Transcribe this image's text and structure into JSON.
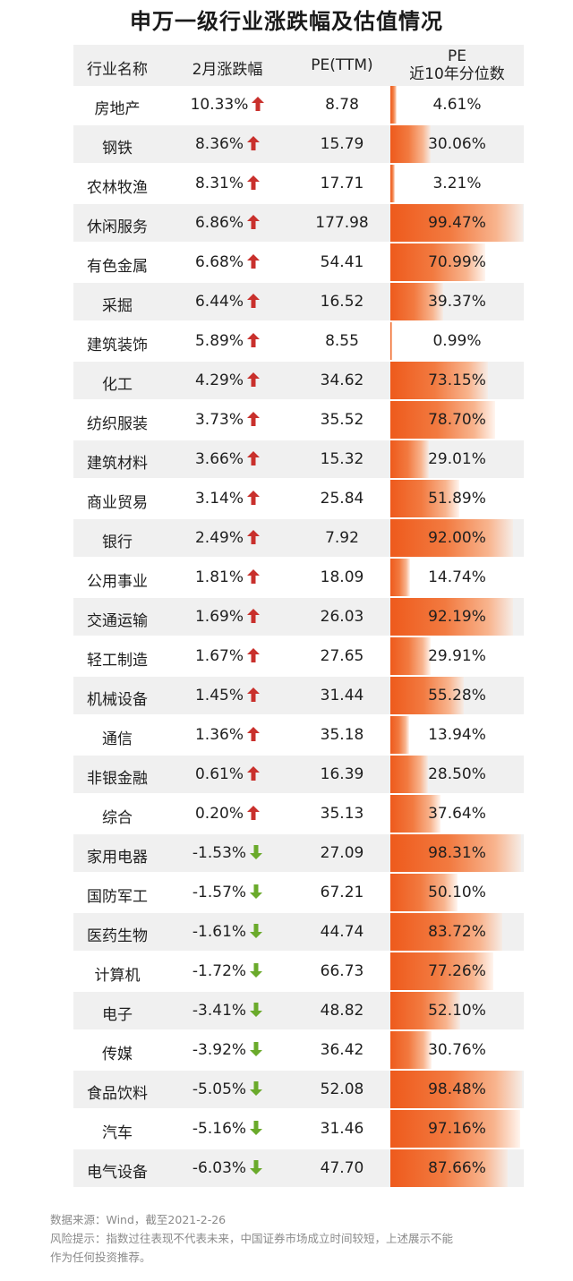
{
  "title": "申万一级行业涨跌幅及估值情况",
  "headers": {
    "name": "行业名称",
    "change": "2月涨跌幅",
    "pe": "PE(TTM)",
    "pct_line1": "PE",
    "pct_line2": "近10年分位数"
  },
  "colors": {
    "up": "#c9302c",
    "down": "#6aaa2b",
    "bar": "#ee5a1c",
    "row_shade": "#f0f0f0"
  },
  "chart_data": {
    "type": "table",
    "title": "申万一级行业涨跌幅及估值情况",
    "columns": [
      "行业名称",
      "2月涨跌幅",
      "PE(TTM)",
      "PE 近10年分位数"
    ],
    "rows": [
      {
        "name": "房地产",
        "change": "10.33%",
        "dir": "up",
        "pe": "8.78",
        "pct": "4.61%",
        "pct_value": 4.61
      },
      {
        "name": "钢铁",
        "change": "8.36%",
        "dir": "up",
        "pe": "15.79",
        "pct": "30.06%",
        "pct_value": 30.06
      },
      {
        "name": "农林牧渔",
        "change": "8.31%",
        "dir": "up",
        "pe": "17.71",
        "pct": "3.21%",
        "pct_value": 3.21
      },
      {
        "name": "休闲服务",
        "change": "6.86%",
        "dir": "up",
        "pe": "177.98",
        "pct": "99.47%",
        "pct_value": 99.47
      },
      {
        "name": "有色金属",
        "change": "6.68%",
        "dir": "up",
        "pe": "54.41",
        "pct": "70.99%",
        "pct_value": 70.99
      },
      {
        "name": "采掘",
        "change": "6.44%",
        "dir": "up",
        "pe": "16.52",
        "pct": "39.37%",
        "pct_value": 39.37
      },
      {
        "name": "建筑装饰",
        "change": "5.89%",
        "dir": "up",
        "pe": "8.55",
        "pct": "0.99%",
        "pct_value": 0.99
      },
      {
        "name": "化工",
        "change": "4.29%",
        "dir": "up",
        "pe": "34.62",
        "pct": "73.15%",
        "pct_value": 73.15
      },
      {
        "name": "纺织服装",
        "change": "3.73%",
        "dir": "up",
        "pe": "35.52",
        "pct": "78.70%",
        "pct_value": 78.7
      },
      {
        "name": "建筑材料",
        "change": "3.66%",
        "dir": "up",
        "pe": "15.32",
        "pct": "29.01%",
        "pct_value": 29.01
      },
      {
        "name": "商业贸易",
        "change": "3.14%",
        "dir": "up",
        "pe": "25.84",
        "pct": "51.89%",
        "pct_value": 51.89
      },
      {
        "name": "银行",
        "change": "2.49%",
        "dir": "up",
        "pe": "7.92",
        "pct": "92.00%",
        "pct_value": 92.0
      },
      {
        "name": "公用事业",
        "change": "1.81%",
        "dir": "up",
        "pe": "18.09",
        "pct": "14.74%",
        "pct_value": 14.74
      },
      {
        "name": "交通运输",
        "change": "1.69%",
        "dir": "up",
        "pe": "26.03",
        "pct": "92.19%",
        "pct_value": 92.19
      },
      {
        "name": "轻工制造",
        "change": "1.67%",
        "dir": "up",
        "pe": "27.65",
        "pct": "29.91%",
        "pct_value": 29.91
      },
      {
        "name": "机械设备",
        "change": "1.45%",
        "dir": "up",
        "pe": "31.44",
        "pct": "55.28%",
        "pct_value": 55.28
      },
      {
        "name": "通信",
        "change": "1.36%",
        "dir": "up",
        "pe": "35.18",
        "pct": "13.94%",
        "pct_value": 13.94
      },
      {
        "name": "非银金融",
        "change": "0.61%",
        "dir": "up",
        "pe": "16.39",
        "pct": "28.50%",
        "pct_value": 28.5
      },
      {
        "name": "综合",
        "change": "0.20%",
        "dir": "up",
        "pe": "35.13",
        "pct": "37.64%",
        "pct_value": 37.64
      },
      {
        "name": "家用电器",
        "change": "-1.53%",
        "dir": "down",
        "pe": "27.09",
        "pct": "98.31%",
        "pct_value": 98.31
      },
      {
        "name": "国防军工",
        "change": "-1.57%",
        "dir": "down",
        "pe": "67.21",
        "pct": "50.10%",
        "pct_value": 50.1
      },
      {
        "name": "医药生物",
        "change": "-1.61%",
        "dir": "down",
        "pe": "44.74",
        "pct": "83.72%",
        "pct_value": 83.72
      },
      {
        "name": "计算机",
        "change": "-1.72%",
        "dir": "down",
        "pe": "66.73",
        "pct": "77.26%",
        "pct_value": 77.26
      },
      {
        "name": "电子",
        "change": "-3.41%",
        "dir": "down",
        "pe": "48.82",
        "pct": "52.10%",
        "pct_value": 52.1
      },
      {
        "name": "传媒",
        "change": "-3.92%",
        "dir": "down",
        "pe": "36.42",
        "pct": "30.76%",
        "pct_value": 30.76
      },
      {
        "name": "食品饮料",
        "change": "-5.05%",
        "dir": "down",
        "pe": "52.08",
        "pct": "98.48%",
        "pct_value": 98.48
      },
      {
        "name": "汽车",
        "change": "-5.16%",
        "dir": "down",
        "pe": "31.46",
        "pct": "97.16%",
        "pct_value": 97.16
      },
      {
        "name": "电气设备",
        "change": "-6.03%",
        "dir": "down",
        "pe": "47.70",
        "pct": "87.66%",
        "pct_value": 87.66
      }
    ]
  },
  "footer": {
    "source": "数据来源：Wind，截至2021-2-26",
    "risk_line1": "风险提示：指数过往表现不代表未来，中国证券市场成立时间较短，上述展示不能",
    "risk_line2": "作为任何投资推荐。"
  }
}
